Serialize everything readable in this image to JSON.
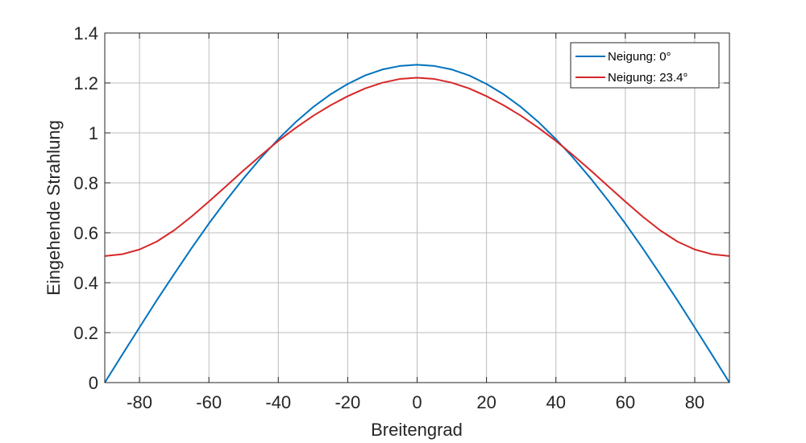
{
  "chart_data": {
    "type": "line",
    "xlabel": "Breitengrad",
    "ylabel": "Eingehende Strahlung",
    "xlim": [
      -90,
      90
    ],
    "ylim": [
      0,
      1.4
    ],
    "xticks": [
      -80,
      -60,
      -40,
      -20,
      0,
      20,
      40,
      60,
      80
    ],
    "xtick_labels": [
      "-80",
      "-60",
      "-40",
      "-20",
      "0",
      "20",
      "40",
      "60",
      "80"
    ],
    "yticks": [
      0,
      0.2,
      0.4,
      0.6,
      0.8,
      1,
      1.2,
      1.4
    ],
    "ytick_labels": [
      "0",
      "0.2",
      "0.4",
      "0.6",
      "0.8",
      "1",
      "1.2",
      "1.4"
    ],
    "grid": true,
    "legend_position": "top-right",
    "x": [
      -90,
      -85,
      -80,
      -75,
      -70,
      -65,
      -60,
      -55,
      -50,
      -45,
      -40,
      -35,
      -30,
      -25,
      -20,
      -15,
      -10,
      -5,
      0,
      5,
      10,
      15,
      20,
      25,
      30,
      35,
      40,
      45,
      50,
      55,
      60,
      65,
      70,
      75,
      80,
      85,
      90
    ],
    "series": [
      {
        "name": "Neigung: 0°",
        "color": "#0072BD",
        "values": [
          0.0,
          0.111,
          0.221,
          0.33,
          0.435,
          0.538,
          0.637,
          0.73,
          0.818,
          0.9,
          0.975,
          1.043,
          1.103,
          1.154,
          1.196,
          1.23,
          1.254,
          1.268,
          1.273,
          1.268,
          1.254,
          1.23,
          1.196,
          1.154,
          1.103,
          1.043,
          0.975,
          0.9,
          0.818,
          0.73,
          0.637,
          0.538,
          0.435,
          0.33,
          0.221,
          0.111,
          0.0
        ]
      },
      {
        "name": "Neigung: 23.4°",
        "color": "#D62728",
        "values": [
          0.507,
          0.514,
          0.533,
          0.565,
          0.61,
          0.665,
          0.725,
          0.787,
          0.85,
          0.91,
          0.968,
          1.02,
          1.068,
          1.11,
          1.147,
          1.178,
          1.201,
          1.216,
          1.221,
          1.216,
          1.201,
          1.178,
          1.147,
          1.11,
          1.068,
          1.02,
          0.968,
          0.91,
          0.85,
          0.787,
          0.725,
          0.665,
          0.61,
          0.565,
          0.533,
          0.514,
          0.507
        ]
      }
    ]
  }
}
